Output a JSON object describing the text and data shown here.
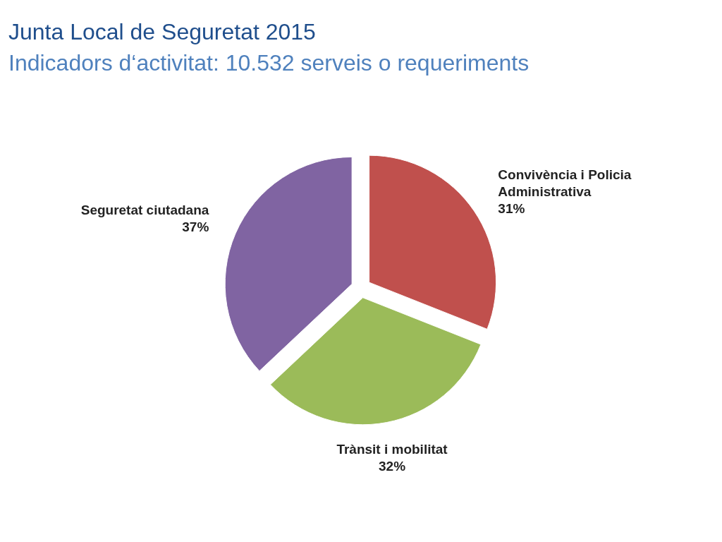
{
  "chart_data": {
    "type": "pie",
    "title": "Junta Local de Seguretat 2015",
    "subtitle": "Indicadors d‘activitat: 10.532 serveis o requeriments",
    "categories": [
      "Convivència i Policia Administrativa",
      "Trànsit i mobilitat",
      "Seguretat ciutadana"
    ],
    "values": [
      31,
      32,
      37
    ],
    "value_labels": [
      "31%",
      "32%",
      "37%"
    ],
    "colors": [
      "#c0504d",
      "#9bbb59",
      "#8064a2"
    ]
  }
}
